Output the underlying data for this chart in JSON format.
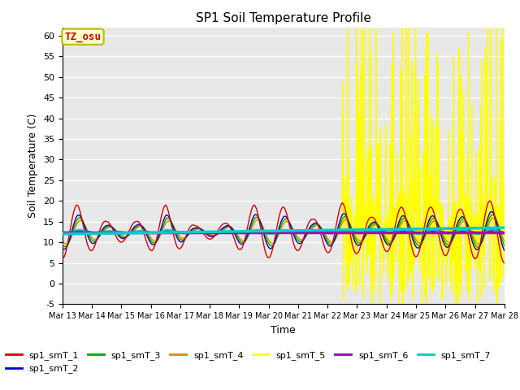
{
  "title": "SP1 Soil Temperature Profile",
  "xlabel": "Time",
  "ylabel": "Soil Temperature (C)",
  "ylim": [
    -5,
    62
  ],
  "yticks": [
    -5,
    0,
    5,
    10,
    15,
    20,
    25,
    30,
    35,
    40,
    45,
    50,
    55,
    60
  ],
  "bg_color": "#e8e8e8",
  "annotation_text": "TZ_osu",
  "annotation_color": "#cc0000",
  "annotation_bg": "#ffffcc",
  "annotation_border": "#bbbb00",
  "series_colors": {
    "sp1_smT_1": "#dd0000",
    "sp1_smT_2": "#0000cc",
    "sp1_smT_3": "#00aa00",
    "sp1_smT_4": "#dd8800",
    "sp1_smT_5": "#ffff00",
    "sp1_smT_6": "#9900bb",
    "sp1_smT_7": "#00cccc"
  },
  "trend_color_purple": "#aa00aa",
  "trend_color_cyan": "#00cccc",
  "num_days": 15,
  "start_day": 13,
  "end_day": 28,
  "base_temp": 12.5,
  "grid_color": "#ffffff",
  "grid_lw": 1.0,
  "line_lw": 1.0
}
